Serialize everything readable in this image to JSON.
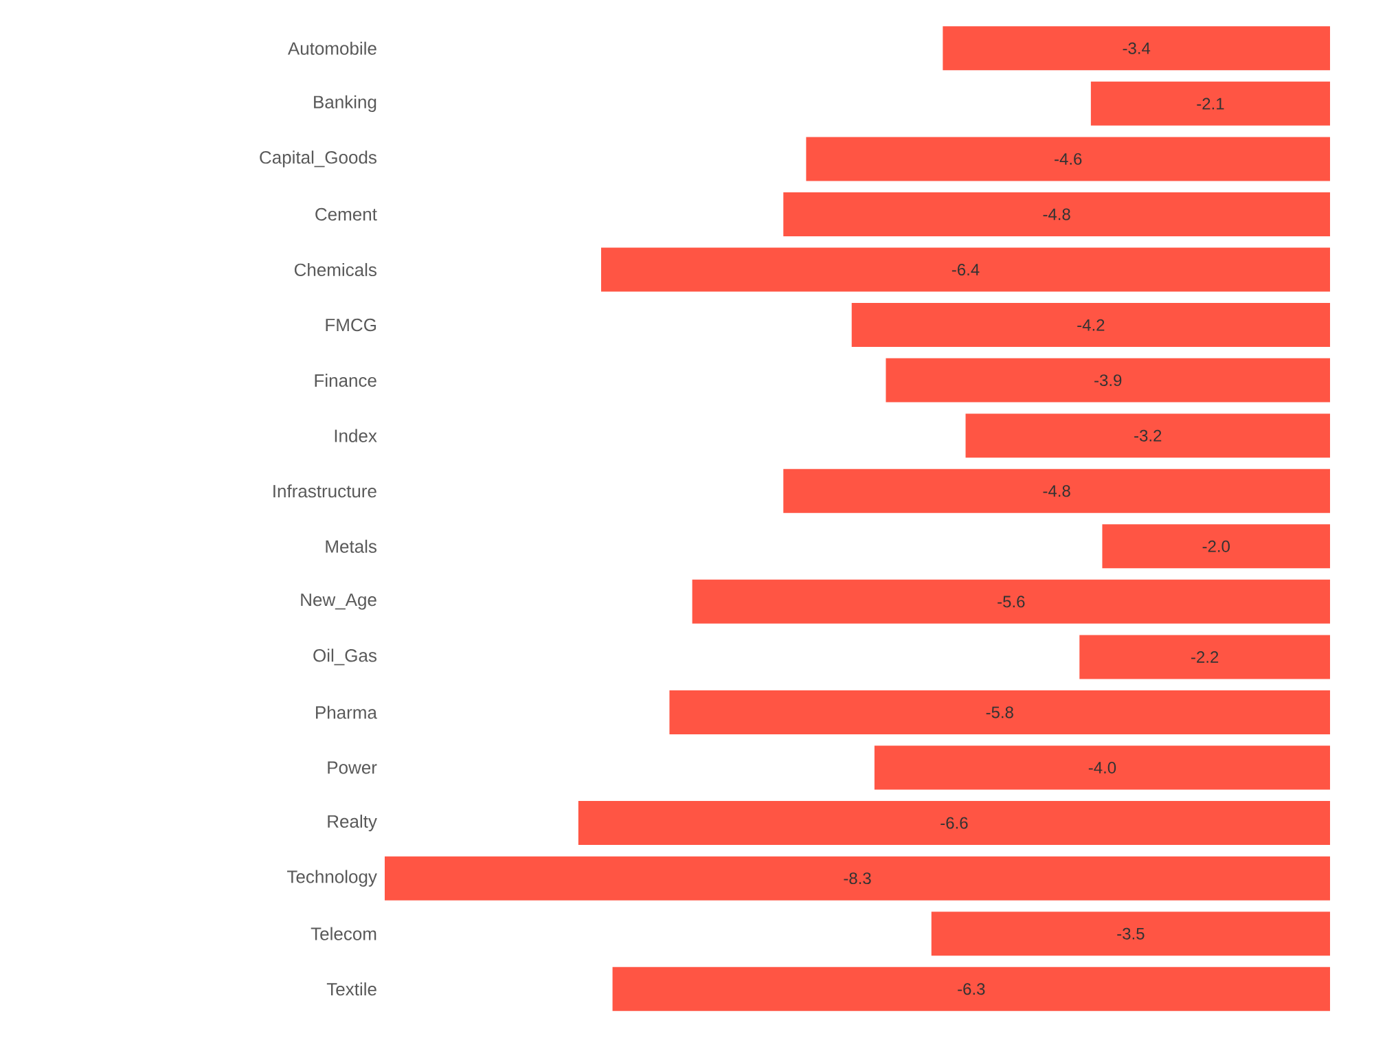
{
  "chart_data": {
    "type": "bar",
    "orientation": "horizontal",
    "color": "#ff5544",
    "value_labels": [
      "-3.4",
      "-2.1",
      "-4.6",
      "-4.8",
      "-6.4",
      "-4.2",
      "-3.9",
      "-3.2",
      "-4.8",
      "-2.0",
      "-5.6",
      "-2.2",
      "-5.8",
      "-4.0",
      "-6.6",
      "-8.3",
      "-3.5",
      "-6.3"
    ],
    "categories": [
      "Automobile",
      "Banking",
      "Capital_Goods",
      "Cement",
      "Chemicals",
      "FMCG",
      "Finance",
      "Index",
      "Infrastructure",
      "Metals",
      "New_Age",
      "Oil_Gas",
      "Pharma",
      "Power",
      "Realty",
      "Technology",
      "Telecom",
      "Textile"
    ],
    "values": [
      -3.4,
      -2.1,
      -4.6,
      -4.8,
      -6.4,
      -4.2,
      -3.9,
      -3.2,
      -4.8,
      -2.0,
      -5.6,
      -2.2,
      -5.8,
      -4.0,
      -6.6,
      -8.3,
      -3.5,
      -6.3
    ]
  }
}
